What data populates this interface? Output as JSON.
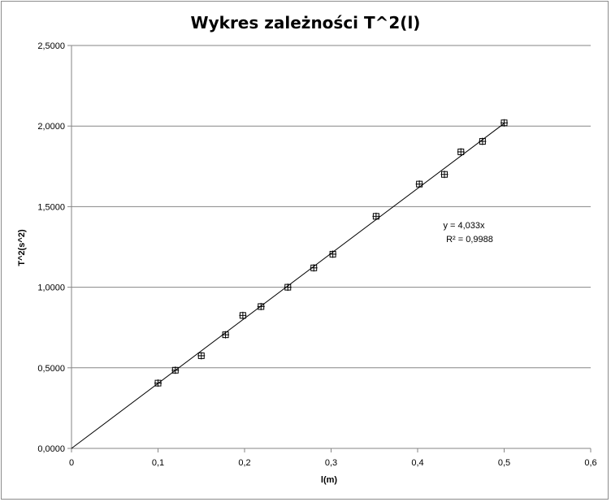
{
  "chart_data": {
    "type": "scatter",
    "title": "Wykres zależności T^2(l)",
    "xlabel": "l(m)",
    "ylabel": "T^2(s^2)",
    "xlim": [
      0,
      0.6
    ],
    "ylim": [
      0,
      2.5
    ],
    "x_ticks": [
      "0",
      "0,1",
      "0,2",
      "0,3",
      "0,4",
      "0,5",
      "0,6"
    ],
    "y_ticks": [
      "0,0000",
      "0,5000",
      "1,0000",
      "1,5000",
      "2,0000",
      "2,5000"
    ],
    "grid": "horizontal",
    "legend": "none",
    "series": [
      {
        "marker": "square-with-cross",
        "color": "#000000",
        "points": [
          {
            "x": 0.1,
            "y": 0.405
          },
          {
            "x": 0.12,
            "y": 0.485
          },
          {
            "x": 0.15,
            "y": 0.575
          },
          {
            "x": 0.178,
            "y": 0.705
          },
          {
            "x": 0.198,
            "y": 0.825
          },
          {
            "x": 0.219,
            "y": 0.88
          },
          {
            "x": 0.25,
            "y": 1.0
          },
          {
            "x": 0.28,
            "y": 1.12
          },
          {
            "x": 0.302,
            "y": 1.205
          },
          {
            "x": 0.352,
            "y": 1.44
          },
          {
            "x": 0.402,
            "y": 1.64
          },
          {
            "x": 0.431,
            "y": 1.7
          },
          {
            "x": 0.45,
            "y": 1.84
          },
          {
            "x": 0.475,
            "y": 1.905
          },
          {
            "x": 0.5,
            "y": 2.02
          }
        ]
      }
    ],
    "trendline": {
      "type": "linear-through-origin",
      "slope": 4.033,
      "x_range": [
        0,
        0.5
      ],
      "equation": "y = 4,033x",
      "r_squared": "R² = 0,9988"
    }
  }
}
